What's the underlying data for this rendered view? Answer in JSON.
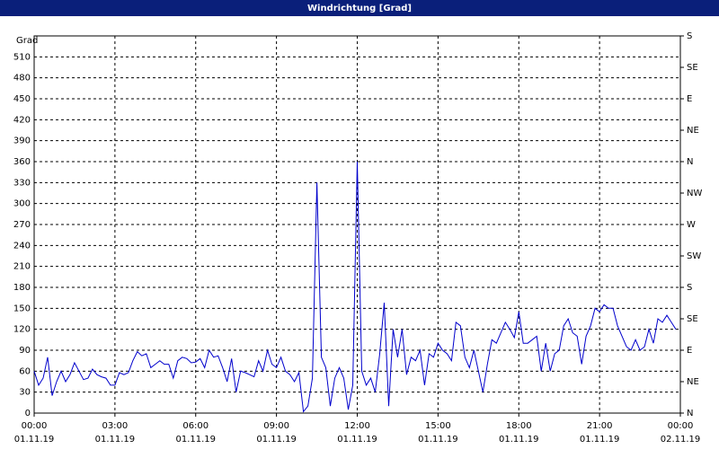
{
  "chart_data": {
    "type": "line",
    "title": "Windrichtung [Grad]",
    "y_label": "Grad",
    "x": [
      0,
      10,
      20,
      30,
      40,
      50,
      60,
      70,
      80,
      90,
      100,
      110,
      120,
      130,
      140,
      150,
      160,
      170,
      180,
      190,
      200,
      210,
      220,
      230,
      240,
      250,
      260,
      270,
      280,
      290,
      300,
      310,
      320,
      330,
      340,
      350,
      360,
      370,
      380,
      390,
      400,
      410,
      420,
      430,
      440,
      450,
      460,
      470,
      480,
      490,
      500,
      510,
      520,
      530,
      540,
      550,
      560,
      570,
      580,
      590,
      600,
      610,
      620,
      630,
      640,
      650,
      660,
      670,
      680,
      690,
      700,
      710,
      720,
      730,
      740,
      750,
      760,
      770,
      780,
      790,
      800,
      810,
      820,
      830,
      840,
      850,
      860,
      870,
      880,
      890,
      900,
      910,
      920,
      930,
      940,
      950,
      960,
      970,
      980,
      990,
      1000,
      1010,
      1020,
      1030,
      1040,
      1050,
      1060,
      1070,
      1080,
      1090,
      1100,
      1110,
      1120,
      1130,
      1140,
      1150,
      1160,
      1170,
      1180,
      1190,
      1200,
      1210,
      1220,
      1230,
      1240,
      1250,
      1260,
      1270,
      1280,
      1290,
      1300,
      1310,
      1320,
      1330,
      1340,
      1350,
      1360,
      1370,
      1380,
      1390,
      1400,
      1410,
      1420,
      1430
    ],
    "series": [
      {
        "color": "#0000cc",
        "values": [
          60,
          40,
          50,
          80,
          25,
          45,
          60,
          45,
          55,
          72,
          60,
          48,
          50,
          63,
          55,
          52,
          50,
          40,
          40,
          58,
          55,
          58,
          75,
          88,
          82,
          85,
          65,
          70,
          75,
          70,
          70,
          50,
          75,
          80,
          78,
          72,
          73,
          78,
          65,
          90,
          80,
          82,
          65,
          45,
          78,
          30,
          60,
          58,
          55,
          52,
          75,
          60,
          90,
          70,
          65,
          80,
          60,
          55,
          45,
          58,
          2,
          10,
          50,
          330,
          80,
          65,
          10,
          50,
          65,
          50,
          5,
          40,
          360,
          60,
          40,
          50,
          30,
          85,
          158,
          10,
          120,
          80,
          120,
          55,
          80,
          75,
          90,
          40,
          85,
          80,
          100,
          90,
          85,
          75,
          130,
          125,
          80,
          65,
          90,
          60,
          30,
          70,
          105,
          100,
          115,
          130,
          120,
          108,
          145,
          100,
          100,
          105,
          110,
          60,
          100,
          60,
          85,
          90,
          125,
          135,
          115,
          110,
          70,
          110,
          125,
          150,
          145,
          155,
          150,
          150,
          125,
          110,
          95,
          90,
          105,
          90,
          95,
          120,
          100,
          135,
          130,
          140,
          130,
          120
        ]
      }
    ],
    "xlim": [
      0,
      1440
    ],
    "xticks": [
      {
        "value": 0,
        "label": "00:00",
        "date": "01.11.19"
      },
      {
        "value": 180,
        "label": "03:00",
        "date": "01.11.19"
      },
      {
        "value": 360,
        "label": "06:00",
        "date": "01.11.19"
      },
      {
        "value": 540,
        "label": "09:00",
        "date": "01.11.19"
      },
      {
        "value": 720,
        "label": "12:00",
        "date": "01.11.19"
      },
      {
        "value": 900,
        "label": "15:00",
        "date": "01.11.19"
      },
      {
        "value": 1080,
        "label": "18:00",
        "date": "01.11.19"
      },
      {
        "value": 1260,
        "label": "21:00",
        "date": "01.11.19"
      },
      {
        "value": 1440,
        "label": "00:00",
        "date": "02.11.19"
      }
    ],
    "ylim": [
      0,
      540
    ],
    "yticks": [
      0,
      30,
      60,
      90,
      120,
      150,
      180,
      210,
      240,
      270,
      300,
      330,
      360,
      390,
      420,
      450,
      480,
      510
    ],
    "y2lim": [
      0,
      540
    ],
    "y2ticks": [
      {
        "value": 0,
        "label": "N"
      },
      {
        "value": 45,
        "label": "NE"
      },
      {
        "value": 90,
        "label": "E"
      },
      {
        "value": 135,
        "label": "SE"
      },
      {
        "value": 180,
        "label": "S"
      },
      {
        "value": 225,
        "label": "SW"
      },
      {
        "value": 270,
        "label": "W"
      },
      {
        "value": 315,
        "label": "NW"
      },
      {
        "value": 360,
        "label": "N"
      },
      {
        "value": 405,
        "label": "NE"
      },
      {
        "value": 450,
        "label": "E"
      },
      {
        "value": 495,
        "label": "SE"
      },
      {
        "value": 540,
        "label": "S"
      }
    ],
    "grid": true
  }
}
